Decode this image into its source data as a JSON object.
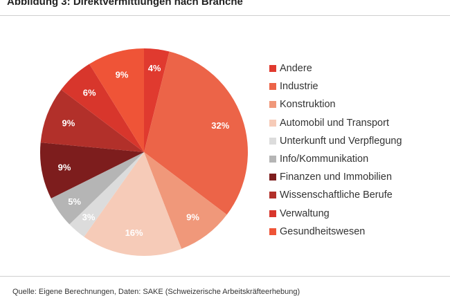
{
  "title": "Abbildung 3: Direktvermittlungen nach Branche",
  "source": "Quelle: Eigene Berechnungen, Daten: SAKE (Schweizerische Arbeitskräfteerhebung)",
  "chart_data": {
    "type": "pie",
    "unit": "%",
    "start": "12 o'clock, clockwise",
    "legend_position": "right",
    "slices": [
      {
        "name": "Andere",
        "value": 4,
        "label": "4%",
        "color": "#e03a2f"
      },
      {
        "name": "Industrie",
        "value": 32,
        "label": "32%",
        "color": "#ec6448"
      },
      {
        "name": "Konstruktion",
        "value": 9,
        "label": "9%",
        "color": "#f0987a"
      },
      {
        "name": "Automobil und Transport",
        "value": 16,
        "label": "16%",
        "color": "#f6cbb8"
      },
      {
        "name": "Unterkunft und Verpflegung",
        "value": 3,
        "label": "3%",
        "color": "#dcdcdc"
      },
      {
        "name": "Info/Kommunikation",
        "value": 5,
        "label": "5%",
        "color": "#b5b5b5"
      },
      {
        "name": "Finanzen und Immobilien",
        "value": 9,
        "label": "9%",
        "color": "#7d1d1d"
      },
      {
        "name": "Wissenschaftliche Berufe",
        "value": 9,
        "label": "9%",
        "color": "#b2302a"
      },
      {
        "name": "Verwaltung",
        "value": 6,
        "label": "6%",
        "color": "#d8362c"
      },
      {
        "name": "Gesundheitswesen",
        "value": 9,
        "label": "9%",
        "color": "#ef5437"
      }
    ]
  }
}
